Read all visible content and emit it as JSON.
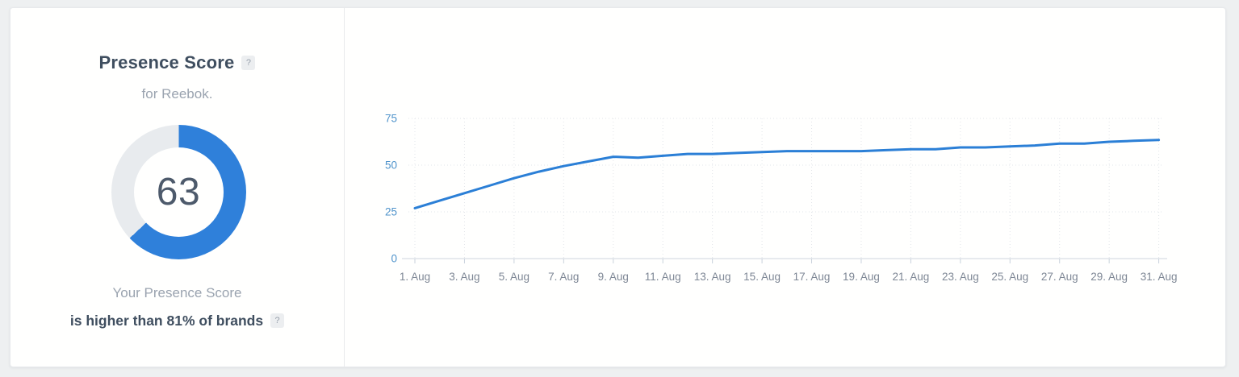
{
  "panel": {
    "title": "Presence Score",
    "help_badge": "?",
    "subtitle": "for Reebok.",
    "gauge": {
      "score": "63",
      "percent": 63
    },
    "footer": {
      "line1": "Your Presence Score",
      "line2": "is higher than 81% of brands",
      "help_badge": "?"
    }
  },
  "colors": {
    "accent_blue": "#2f80da",
    "ring_gray": "#e8ebee",
    "score_text": "#4d5a6b"
  },
  "chart_data": {
    "type": "line",
    "title": "",
    "xlabel": "",
    "ylabel": "",
    "days": [
      1,
      2,
      3,
      4,
      5,
      6,
      7,
      8,
      9,
      10,
      11,
      12,
      13,
      14,
      15,
      16,
      17,
      18,
      19,
      20,
      21,
      22,
      23,
      24,
      25,
      26,
      27,
      28,
      29,
      30,
      31
    ],
    "values": [
      27,
      31,
      35,
      39,
      43,
      46.5,
      49.5,
      52,
      54.5,
      54,
      55,
      56,
      56,
      56.5,
      57,
      57.5,
      57.5,
      57.5,
      57.5,
      58,
      58.5,
      58.5,
      59.5,
      59.5,
      60,
      60.5,
      61.5,
      61.5,
      62.5,
      63,
      63.5
    ],
    "xticks": [
      {
        "day": 1,
        "label": "1. Aug"
      },
      {
        "day": 3,
        "label": "3. Aug"
      },
      {
        "day": 5,
        "label": "5. Aug"
      },
      {
        "day": 7,
        "label": "7. Aug"
      },
      {
        "day": 9,
        "label": "9. Aug"
      },
      {
        "day": 11,
        "label": "11. Aug"
      },
      {
        "day": 13,
        "label": "13. Aug"
      },
      {
        "day": 15,
        "label": "15. Aug"
      },
      {
        "day": 17,
        "label": "17. Aug"
      },
      {
        "day": 19,
        "label": "19. Aug"
      },
      {
        "day": 21,
        "label": "21. Aug"
      },
      {
        "day": 23,
        "label": "23. Aug"
      },
      {
        "day": 25,
        "label": "25. Aug"
      },
      {
        "day": 27,
        "label": "27. Aug"
      },
      {
        "day": 29,
        "label": "29. Aug"
      },
      {
        "day": 31,
        "label": "31. Aug"
      }
    ],
    "yticks": [
      0,
      25,
      50,
      75
    ],
    "ylim": [
      0,
      75
    ],
    "grid": "dotted",
    "legend": "none",
    "line_color": "#2b7fd6",
    "ytick_color": "#4f93cb",
    "xtick_color": "#7e8795",
    "axis_color": "#cfd6de",
    "grid_color": "#e2e5e9",
    "tick_color": "#c9d2dc"
  }
}
